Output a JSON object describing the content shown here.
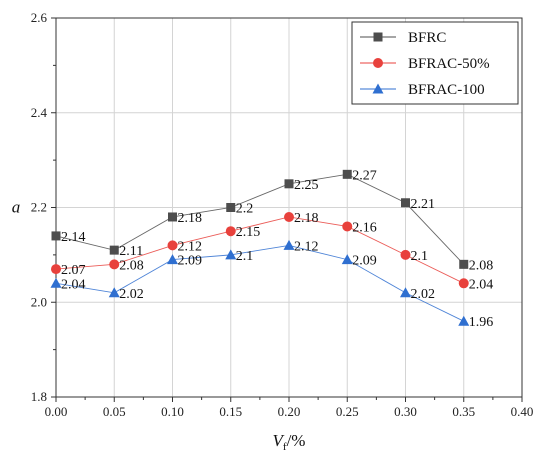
{
  "chart_data": {
    "type": "line",
    "xlabel": "V",
    "xlabel_sub": "f",
    "xlabel_suffix": "/%",
    "ylabel": "a",
    "xlim": [
      0.0,
      0.4
    ],
    "ylim": [
      1.8,
      2.6
    ],
    "x_ticks": [
      "0.00",
      "0.05",
      "0.10",
      "0.15",
      "0.20",
      "0.25",
      "0.30",
      "0.35",
      "0.40"
    ],
    "y_ticks": [
      "1.8",
      "2.0",
      "2.2",
      "2.4",
      "2.6"
    ],
    "x_tick_values": [
      0.0,
      0.05,
      0.1,
      0.15,
      0.2,
      0.25,
      0.3,
      0.35,
      0.4
    ],
    "y_tick_values": [
      1.8,
      2.0,
      2.2,
      2.4,
      2.6
    ],
    "grid": true,
    "legend_position": "top-right",
    "x": [
      0.0,
      0.05,
      0.1,
      0.15,
      0.2,
      0.25,
      0.3,
      0.35
    ],
    "series": [
      {
        "name": "BFRC",
        "marker": "square",
        "color": "#4d4d4d",
        "values": [
          2.14,
          2.11,
          2.18,
          2.2,
          2.25,
          2.27,
          2.21,
          2.08
        ],
        "labels": [
          "2.14",
          "2.11",
          "2.18",
          "2.2",
          "2.25",
          "2.27",
          "2.21",
          "2.08"
        ]
      },
      {
        "name": "BFRAC-50%",
        "marker": "circle",
        "color": "#e8413c",
        "values": [
          2.07,
          2.08,
          2.12,
          2.15,
          2.18,
          2.16,
          2.1,
          2.04
        ],
        "labels": [
          "2.07",
          "2.08",
          "2.12",
          "2.15",
          "2.18",
          "2.16",
          "2.1",
          "2.04"
        ]
      },
      {
        "name": "BFRAC-100",
        "marker": "triangle",
        "color": "#2f6fd0",
        "values": [
          2.04,
          2.02,
          2.09,
          2.1,
          2.12,
          2.09,
          2.02,
          1.96
        ],
        "labels": [
          "2.04",
          "2.02",
          "2.09",
          "2.1",
          "2.12",
          "2.09",
          "2.02",
          "1.96"
        ]
      }
    ]
  }
}
